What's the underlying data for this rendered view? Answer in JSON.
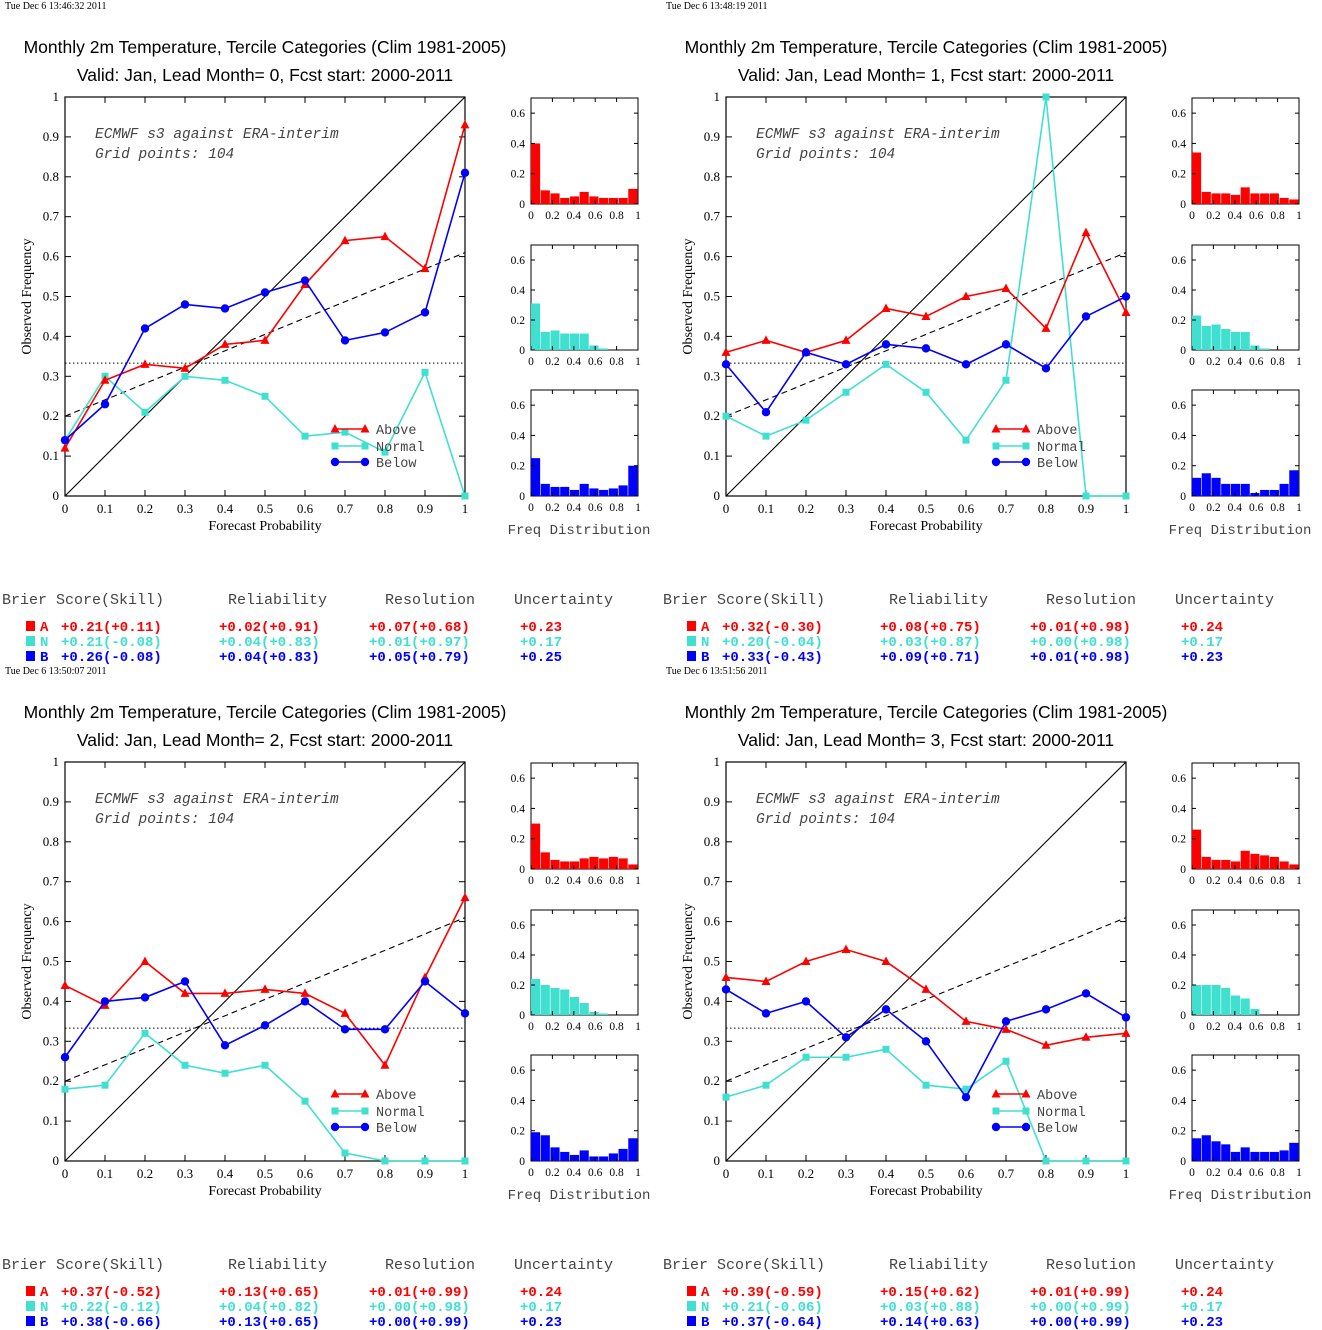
{
  "colors": {
    "above": "#ff0000",
    "normal": "#40e0d0",
    "below": "#0000ff",
    "axis": "#000000"
  },
  "common": {
    "model_text": "ECMWF s3 against ERA-interim",
    "grid_text": "Grid points:  104",
    "x_axis_label": "Forecast Probability",
    "y_axis_label": "Observed Frequency",
    "legend": [
      "Above",
      "Normal",
      "Below"
    ],
    "freq_label": "Freq Distribution",
    "score_headers": [
      "Brier Score(Skill)",
      "Reliability",
      "Resolution",
      "Uncertainty"
    ],
    "main_x_ticks": [
      "0",
      "0.1",
      "0.2",
      "0.3",
      "0.4",
      "0.5",
      "0.6",
      "0.7",
      "0.8",
      "0.9",
      "1"
    ],
    "main_y_ticks": [
      "0",
      "0.1",
      "0.2",
      "0.3",
      "0.4",
      "0.5",
      "0.6",
      "0.7",
      "0.8",
      "0.9",
      "1"
    ],
    "hist_y_ticks": [
      "0",
      "0.2",
      "0.4",
      "0.6"
    ],
    "hist_x_ticks": [
      "0",
      "0.2",
      "0.4",
      "0.6",
      "0.8",
      "1"
    ]
  },
  "chart_data": [
    {
      "type": "line",
      "timestamp": "Tue Dec  6 13:46:32 2011",
      "title": "Monthly 2m Temperature, Tercile Categories (Clim 1981-2005)",
      "subtitle": "Valid: Jan, Lead Month= 0, Fcst start: 2000-2011",
      "xlabel": "Forecast Probability",
      "ylabel": "Observed Frequency",
      "xlim": [
        0,
        1
      ],
      "ylim": [
        0,
        1
      ],
      "x": [
        0,
        0.1,
        0.2,
        0.3,
        0.4,
        0.5,
        0.6,
        0.7,
        0.8,
        0.9,
        1
      ],
      "series": [
        {
          "name": "Above",
          "values": [
            0.12,
            0.29,
            0.33,
            0.32,
            0.38,
            0.39,
            0.53,
            0.64,
            0.65,
            0.57,
            0.93
          ]
        },
        {
          "name": "Normal",
          "values": [
            0.14,
            0.3,
            0.21,
            0.3,
            0.29,
            0.25,
            0.15,
            0.16,
            0.11,
            0.31,
            0
          ]
        },
        {
          "name": "Below",
          "values": [
            0.14,
            0.23,
            0.42,
            0.48,
            0.47,
            0.51,
            0.54,
            0.39,
            0.41,
            0.46,
            0.81
          ]
        }
      ],
      "climatology_y": 0.333,
      "fit_line": [
        0.2,
        0.61
      ],
      "freq": {
        "Above": [
          0.4,
          0.09,
          0.07,
          0.04,
          0.05,
          0.08,
          0.05,
          0.04,
          0.04,
          0.04,
          0.1
        ],
        "Normal": [
          0.31,
          0.12,
          0.13,
          0.11,
          0.11,
          0.11,
          0.03,
          0.01,
          0,
          0,
          0
        ],
        "Below": [
          0.25,
          0.08,
          0.06,
          0.06,
          0.04,
          0.08,
          0.05,
          0.04,
          0.05,
          0.07,
          0.2
        ]
      },
      "scores": [
        {
          "label": "A",
          "brier": "+0.21(+0.11)",
          "reliability": "+0.02(+0.91)",
          "resolution": "+0.07(+0.68)",
          "uncertainty": "+0.23"
        },
        {
          "label": "N",
          "brier": "+0.21(-0.08)",
          "reliability": "+0.04(+0.83)",
          "resolution": "+0.01(+0.97)",
          "uncertainty": "+0.17"
        },
        {
          "label": "B",
          "brier": "+0.26(-0.08)",
          "reliability": "+0.04(+0.83)",
          "resolution": "+0.05(+0.79)",
          "uncertainty": "+0.25"
        }
      ]
    },
    {
      "type": "line",
      "timestamp": "Tue Dec  6 13:48:19 2011",
      "title": "Monthly 2m Temperature, Tercile Categories (Clim 1981-2005)",
      "subtitle": "Valid: Jan, Lead Month= 1, Fcst start: 2000-2011",
      "xlabel": "Forecast Probability",
      "ylabel": "Observed Frequency",
      "xlim": [
        0,
        1
      ],
      "ylim": [
        0,
        1
      ],
      "x": [
        0,
        0.1,
        0.2,
        0.3,
        0.4,
        0.5,
        0.6,
        0.7,
        0.8,
        0.9,
        1
      ],
      "series": [
        {
          "name": "Above",
          "values": [
            0.36,
            0.39,
            0.36,
            0.39,
            0.47,
            0.45,
            0.5,
            0.52,
            0.42,
            0.66,
            0.46
          ]
        },
        {
          "name": "Normal",
          "values": [
            0.2,
            0.15,
            0.19,
            0.26,
            0.33,
            0.26,
            0.14,
            0.29,
            1.0,
            0,
            0
          ]
        },
        {
          "name": "Below",
          "values": [
            0.33,
            0.21,
            0.36,
            0.33,
            0.38,
            0.37,
            0.33,
            0.38,
            0.32,
            0.45,
            0.5
          ]
        }
      ],
      "climatology_y": 0.333,
      "fit_line": [
        0.2,
        0.61
      ],
      "freq": {
        "Above": [
          0.34,
          0.08,
          0.07,
          0.07,
          0.06,
          0.11,
          0.07,
          0.07,
          0.07,
          0.04,
          0.03
        ],
        "Normal": [
          0.23,
          0.16,
          0.17,
          0.14,
          0.12,
          0.12,
          0.03,
          0.01,
          0,
          0,
          0
        ],
        "Below": [
          0.12,
          0.15,
          0.12,
          0.08,
          0.08,
          0.08,
          0.02,
          0.04,
          0.04,
          0.08,
          0.17
        ]
      },
      "scores": [
        {
          "label": "A",
          "brier": "+0.32(-0.30)",
          "reliability": "+0.08(+0.75)",
          "resolution": "+0.01(+0.98)",
          "uncertainty": "+0.24"
        },
        {
          "label": "N",
          "brier": "+0.20(-0.04)",
          "reliability": "+0.03(+0.87)",
          "resolution": "+0.00(+0.98)",
          "uncertainty": "+0.17"
        },
        {
          "label": "B",
          "brier": "+0.33(-0.43)",
          "reliability": "+0.09(+0.71)",
          "resolution": "+0.01(+0.98)",
          "uncertainty": "+0.23"
        }
      ]
    },
    {
      "type": "line",
      "timestamp": "Tue Dec  6 13:50:07 2011",
      "title": "Monthly 2m Temperature, Tercile Categories (Clim 1981-2005)",
      "subtitle": "Valid: Jan, Lead Month= 2, Fcst start: 2000-2011",
      "xlabel": "Forecast Probability",
      "ylabel": "Observed Frequency",
      "xlim": [
        0,
        1
      ],
      "ylim": [
        0,
        1
      ],
      "x": [
        0,
        0.1,
        0.2,
        0.3,
        0.4,
        0.5,
        0.6,
        0.7,
        0.8,
        0.9,
        1
      ],
      "series": [
        {
          "name": "Above",
          "values": [
            0.44,
            0.39,
            0.5,
            0.42,
            0.42,
            0.43,
            0.42,
            0.37,
            0.24,
            0.46,
            0.66
          ]
        },
        {
          "name": "Normal",
          "values": [
            0.18,
            0.19,
            0.32,
            0.24,
            0.22,
            0.24,
            0.15,
            0.02,
            0,
            0,
            0
          ]
        },
        {
          "name": "Below",
          "values": [
            0.26,
            0.4,
            0.41,
            0.45,
            0.29,
            0.34,
            0.4,
            0.33,
            0.33,
            0.45,
            0.37
          ]
        }
      ],
      "climatology_y": 0.333,
      "fit_line": [
        0.2,
        0.61
      ],
      "freq": {
        "Above": [
          0.3,
          0.11,
          0.06,
          0.05,
          0.05,
          0.07,
          0.08,
          0.07,
          0.08,
          0.07,
          0.03
        ],
        "Normal": [
          0.24,
          0.2,
          0.18,
          0.17,
          0.12,
          0.08,
          0.02,
          0.01,
          0,
          0,
          0
        ],
        "Below": [
          0.19,
          0.17,
          0.09,
          0.06,
          0.04,
          0.07,
          0.03,
          0.03,
          0.05,
          0.08,
          0.15
        ]
      },
      "scores": [
        {
          "label": "A",
          "brier": "+0.37(-0.52)",
          "reliability": "+0.13(+0.65)",
          "resolution": "+0.01(+0.99)",
          "uncertainty": "+0.24"
        },
        {
          "label": "N",
          "brier": "+0.22(-0.12)",
          "reliability": "+0.04(+0.82)",
          "resolution": "+0.00(+0.98)",
          "uncertainty": "+0.17"
        },
        {
          "label": "B",
          "brier": "+0.38(-0.66)",
          "reliability": "+0.13(+0.65)",
          "resolution": "+0.00(+0.99)",
          "uncertainty": "+0.23"
        }
      ]
    },
    {
      "type": "line",
      "timestamp": "Tue Dec  6 13:51:56 2011",
      "title": "Monthly 2m Temperature, Tercile Categories (Clim 1981-2005)",
      "subtitle": "Valid: Jan, Lead Month= 3, Fcst start: 2000-2011",
      "xlabel": "Forecast Probability",
      "ylabel": "Observed Frequency",
      "xlim": [
        0,
        1
      ],
      "ylim": [
        0,
        1
      ],
      "x": [
        0,
        0.1,
        0.2,
        0.3,
        0.4,
        0.5,
        0.6,
        0.7,
        0.8,
        0.9,
        1
      ],
      "series": [
        {
          "name": "Above",
          "values": [
            0.46,
            0.45,
            0.5,
            0.53,
            0.5,
            0.43,
            0.35,
            0.33,
            0.29,
            0.31,
            0.32
          ]
        },
        {
          "name": "Normal",
          "values": [
            0.16,
            0.19,
            0.26,
            0.26,
            0.28,
            0.19,
            0.18,
            0.25,
            0,
            0,
            0
          ]
        },
        {
          "name": "Below",
          "values": [
            0.43,
            0.37,
            0.4,
            0.31,
            0.38,
            0.3,
            0.16,
            0.35,
            0.38,
            0.42,
            0.36
          ]
        }
      ],
      "climatology_y": 0.333,
      "fit_line": [
        0.2,
        0.61
      ],
      "freq": {
        "Above": [
          0.26,
          0.08,
          0.06,
          0.06,
          0.05,
          0.12,
          0.1,
          0.09,
          0.08,
          0.05,
          0.03
        ],
        "Normal": [
          0.2,
          0.2,
          0.2,
          0.18,
          0.13,
          0.11,
          0.04,
          0,
          0,
          0,
          0
        ],
        "Below": [
          0.15,
          0.17,
          0.13,
          0.11,
          0.06,
          0.09,
          0.06,
          0.06,
          0.06,
          0.07,
          0.12
        ]
      },
      "scores": [
        {
          "label": "A",
          "brier": "+0.39(-0.59)",
          "reliability": "+0.15(+0.62)",
          "resolution": "+0.01(+0.99)",
          "uncertainty": "+0.24"
        },
        {
          "label": "N",
          "brier": "+0.21(-0.06)",
          "reliability": "+0.03(+0.88)",
          "resolution": "+0.00(+0.99)",
          "uncertainty": "+0.17"
        },
        {
          "label": "B",
          "brier": "+0.37(-0.64)",
          "reliability": "+0.14(+0.63)",
          "resolution": "+0.00(+0.99)",
          "uncertainty": "+0.23"
        }
      ]
    }
  ]
}
